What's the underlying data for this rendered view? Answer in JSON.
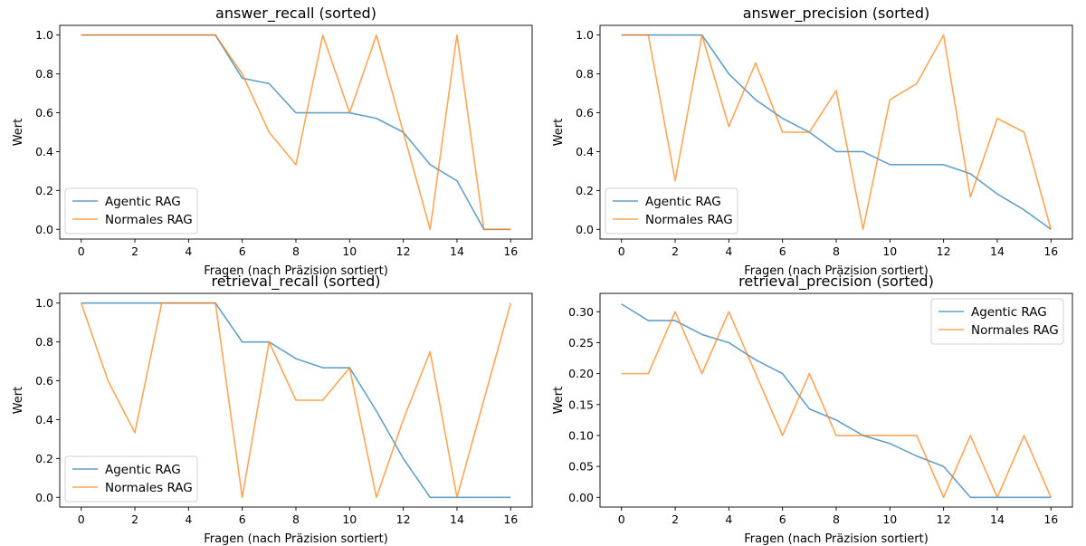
{
  "chart_data": [
    {
      "type": "line",
      "title": "answer_recall (sorted)",
      "xlabel": "Fragen (nach Präzision sortiert)",
      "ylabel": "Wert",
      "xlim": [
        -0.8,
        16.8
      ],
      "ylim": [
        -0.05,
        1.05
      ],
      "xticks": [
        0,
        2,
        4,
        6,
        8,
        10,
        12,
        14,
        16
      ],
      "yticks": [
        0.0,
        0.2,
        0.4,
        0.6,
        0.8,
        1.0
      ],
      "ytick_labels": [
        "0.0",
        "0.2",
        "0.4",
        "0.6",
        "0.8",
        "1.0"
      ],
      "legend_position": "lower-left",
      "x": [
        0,
        1,
        2,
        3,
        4,
        5,
        6,
        7,
        8,
        9,
        10,
        11,
        12,
        13,
        14,
        15,
        16
      ],
      "series": [
        {
          "name": "Agentic RAG",
          "color": "#1f77b4",
          "values": [
            1.0,
            1.0,
            1.0,
            1.0,
            1.0,
            1.0,
            0.778,
            0.75,
            0.6,
            0.6,
            0.6,
            0.571,
            0.5,
            0.333,
            0.25,
            0.0,
            0.0
          ]
        },
        {
          "name": "Normales RAG",
          "color": "#ff7f0e",
          "values": [
            1.0,
            1.0,
            1.0,
            1.0,
            1.0,
            1.0,
            0.8,
            0.5,
            0.333,
            1.0,
            0.6,
            1.0,
            0.5,
            0.0,
            1.0,
            0.0,
            0.0
          ]
        }
      ]
    },
    {
      "type": "line",
      "title": "answer_precision (sorted)",
      "xlabel": "Fragen (nach Präzision sortiert)",
      "ylabel": "Wert",
      "xlim": [
        -0.8,
        16.8
      ],
      "ylim": [
        -0.05,
        1.05
      ],
      "xticks": [
        0,
        2,
        4,
        6,
        8,
        10,
        12,
        14,
        16
      ],
      "yticks": [
        0.0,
        0.2,
        0.4,
        0.6,
        0.8,
        1.0
      ],
      "ytick_labels": [
        "0.0",
        "0.2",
        "0.4",
        "0.6",
        "0.8",
        "1.0"
      ],
      "legend_position": "lower-left",
      "x": [
        0,
        1,
        2,
        3,
        4,
        5,
        6,
        7,
        8,
        9,
        10,
        11,
        12,
        13,
        14,
        15,
        16
      ],
      "series": [
        {
          "name": "Agentic RAG",
          "color": "#1f77b4",
          "values": [
            1.0,
            1.0,
            1.0,
            1.0,
            0.8,
            0.667,
            0.571,
            0.5,
            0.4,
            0.4,
            0.333,
            0.333,
            0.333,
            0.286,
            0.182,
            0.1,
            0.0
          ]
        },
        {
          "name": "Normales RAG",
          "color": "#ff7f0e",
          "values": [
            1.0,
            1.0,
            0.25,
            1.0,
            0.529,
            0.857,
            0.5,
            0.5,
            0.714,
            0.0,
            0.667,
            0.75,
            1.0,
            0.167,
            0.571,
            0.5,
            0.0
          ]
        }
      ]
    },
    {
      "type": "line",
      "title": "retrieval_recall (sorted)",
      "xlabel": "Fragen (nach Präzision sortiert)",
      "ylabel": "Wert",
      "xlim": [
        -0.8,
        16.8
      ],
      "ylim": [
        -0.05,
        1.05
      ],
      "xticks": [
        0,
        2,
        4,
        6,
        8,
        10,
        12,
        14,
        16
      ],
      "yticks": [
        0.0,
        0.2,
        0.4,
        0.6,
        0.8,
        1.0
      ],
      "ytick_labels": [
        "0.0",
        "0.2",
        "0.4",
        "0.6",
        "0.8",
        "1.0"
      ],
      "legend_position": "lower-left",
      "x": [
        0,
        1,
        2,
        3,
        4,
        5,
        6,
        7,
        8,
        9,
        10,
        11,
        12,
        13,
        14,
        15,
        16
      ],
      "series": [
        {
          "name": "Agentic RAG",
          "color": "#1f77b4",
          "values": [
            1.0,
            1.0,
            1.0,
            1.0,
            1.0,
            1.0,
            0.8,
            0.8,
            0.714,
            0.667,
            0.667,
            0.444,
            0.2,
            0.0,
            0.0,
            0.0,
            0.0
          ]
        },
        {
          "name": "Normales RAG",
          "color": "#ff7f0e",
          "values": [
            1.0,
            0.6,
            0.333,
            1.0,
            1.0,
            1.0,
            0.0,
            0.8,
            0.5,
            0.5,
            0.667,
            0.0,
            0.4,
            0.75,
            0.0,
            0.5,
            1.0
          ]
        }
      ]
    },
    {
      "type": "line",
      "title": "retrieval_precision (sorted)",
      "xlabel": "Fragen (nach Präzision sortiert)",
      "ylabel": "Wert",
      "xlim": [
        -0.8,
        16.8
      ],
      "ylim": [
        -0.0157,
        0.3297
      ],
      "xticks": [
        0,
        2,
        4,
        6,
        8,
        10,
        12,
        14,
        16
      ],
      "yticks": [
        0.0,
        0.05,
        0.1,
        0.15,
        0.2,
        0.25,
        0.3
      ],
      "ytick_labels": [
        "0.00",
        "0.05",
        "0.10",
        "0.15",
        "0.20",
        "0.25",
        "0.30"
      ],
      "legend_position": "upper-right",
      "x": [
        0,
        1,
        2,
        3,
        4,
        5,
        6,
        7,
        8,
        9,
        10,
        11,
        12,
        13,
        14,
        15,
        16
      ],
      "series": [
        {
          "name": "Agentic RAG",
          "color": "#1f77b4",
          "values": [
            0.3125,
            0.2857,
            0.2857,
            0.2632,
            0.25,
            0.2222,
            0.2,
            0.1429,
            0.125,
            0.1,
            0.087,
            0.0667,
            0.05,
            0.0,
            0.0,
            0.0,
            0.0
          ]
        },
        {
          "name": "Normales RAG",
          "color": "#ff7f0e",
          "values": [
            0.2,
            0.2,
            0.3,
            0.2,
            0.3,
            0.2,
            0.1,
            0.2,
            0.1,
            0.1,
            0.1,
            0.1,
            0.0,
            0.1,
            0.0,
            0.1,
            0.0
          ]
        }
      ]
    }
  ]
}
